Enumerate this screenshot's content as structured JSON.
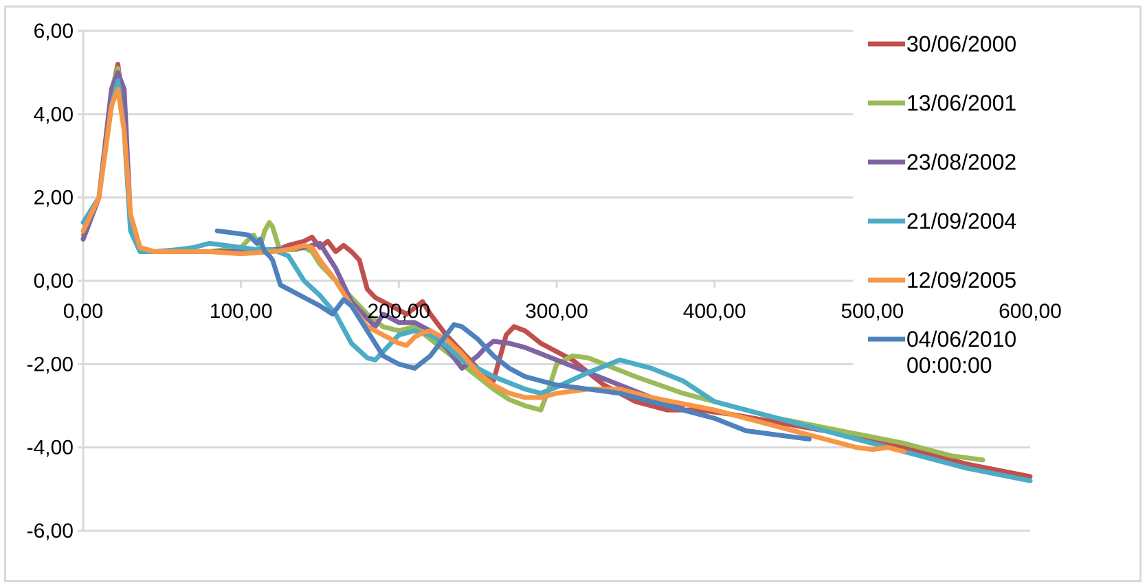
{
  "chart_data": {
    "type": "line",
    "title": "",
    "xlabel": "",
    "ylabel": "",
    "xlim": [
      0,
      600
    ],
    "ylim": [
      -6,
      6
    ],
    "x_ticks": [
      {
        "value": 0,
        "label": "0,00"
      },
      {
        "value": 100,
        "label": "100,00"
      },
      {
        "value": 200,
        "label": "200,00"
      },
      {
        "value": 300,
        "label": "300,00"
      },
      {
        "value": 400,
        "label": "400,00"
      },
      {
        "value": 500,
        "label": "500,00"
      },
      {
        "value": 600,
        "label": "600,00"
      }
    ],
    "y_ticks": [
      {
        "value": 6,
        "label": "6,00"
      },
      {
        "value": 4,
        "label": "4,00"
      },
      {
        "value": 2,
        "label": "2,00"
      },
      {
        "value": 0,
        "label": "0,00"
      },
      {
        "value": -2,
        "label": "-2,00"
      },
      {
        "value": -4,
        "label": "-4,00"
      },
      {
        "value": -6,
        "label": "-6,00"
      }
    ],
    "grid": "horizontal",
    "legend_position": "right",
    "series": [
      {
        "name": "30/06/2000",
        "color": "#c0504d",
        "x": [
          0,
          10,
          18,
          22,
          26,
          30,
          36,
          45,
          60,
          80,
          100,
          120,
          130,
          140,
          145,
          150,
          155,
          160,
          165,
          170,
          175,
          180,
          185,
          195,
          205,
          215,
          220,
          230,
          240,
          250,
          260,
          268,
          273,
          280,
          290,
          300,
          310,
          320,
          330,
          350,
          370,
          390,
          410,
          440,
          470,
          500,
          530,
          560,
          600
        ],
        "y": [
          1.0,
          2.0,
          4.5,
          5.2,
          4.0,
          1.5,
          0.8,
          0.7,
          0.7,
          0.7,
          0.7,
          0.7,
          0.85,
          0.95,
          1.05,
          0.8,
          0.95,
          0.7,
          0.85,
          0.7,
          0.5,
          -0.2,
          -0.4,
          -0.6,
          -0.8,
          -0.5,
          -0.8,
          -1.3,
          -1.7,
          -2.1,
          -2.4,
          -1.3,
          -1.1,
          -1.2,
          -1.5,
          -1.7,
          -1.9,
          -2.2,
          -2.5,
          -2.9,
          -3.1,
          -3.1,
          -3.2,
          -3.4,
          -3.6,
          -3.8,
          -4.1,
          -4.4,
          -4.7
        ]
      },
      {
        "name": "13/06/2001",
        "color": "#9bbb59",
        "x": [
          0,
          10,
          18,
          22,
          26,
          30,
          36,
          45,
          60,
          80,
          100,
          105,
          108,
          112,
          115,
          118,
          120,
          124,
          128,
          135,
          140,
          145,
          150,
          155,
          160,
          170,
          180,
          190,
          200,
          210,
          220,
          230,
          240,
          250,
          260,
          270,
          280,
          290,
          295,
          300,
          310,
          320,
          330,
          350,
          380,
          410,
          440,
          480,
          520,
          550,
          570
        ],
        "y": [
          1.1,
          2.0,
          4.6,
          5.1,
          4.0,
          1.5,
          0.75,
          0.7,
          0.7,
          0.7,
          0.8,
          1.0,
          1.1,
          0.8,
          1.2,
          1.4,
          1.3,
          0.8,
          0.75,
          0.75,
          0.8,
          0.7,
          0.4,
          0.2,
          0.0,
          -0.4,
          -0.8,
          -1.1,
          -1.2,
          -1.1,
          -1.4,
          -1.7,
          -2.0,
          -2.3,
          -2.6,
          -2.85,
          -3.0,
          -3.1,
          -2.6,
          -2.0,
          -1.8,
          -1.85,
          -2.0,
          -2.3,
          -2.7,
          -3.0,
          -3.3,
          -3.6,
          -3.9,
          -4.2,
          -4.3
        ]
      },
      {
        "name": "23/08/2002",
        "color": "#8064a2",
        "x": [
          0,
          10,
          18,
          22,
          26,
          30,
          36,
          45,
          60,
          80,
          100,
          120,
          140,
          150,
          155,
          160,
          170,
          180,
          185,
          190,
          195,
          200,
          210,
          220,
          230,
          240,
          250,
          255,
          260,
          270,
          280,
          300,
          320,
          340,
          360,
          380
        ],
        "y": [
          1.0,
          2.0,
          4.6,
          5.0,
          4.6,
          1.5,
          0.8,
          0.7,
          0.7,
          0.7,
          0.7,
          0.75,
          0.8,
          0.9,
          0.6,
          0.3,
          -0.5,
          -0.9,
          -1.1,
          -0.8,
          -0.9,
          -1.0,
          -1.0,
          -1.2,
          -1.6,
          -2.1,
          -1.8,
          -1.6,
          -1.45,
          -1.5,
          -1.6,
          -1.9,
          -2.2,
          -2.5,
          -2.8,
          -3.0
        ]
      },
      {
        "name": "21/09/2004",
        "color": "#4bacc6",
        "x": [
          0,
          10,
          18,
          22,
          26,
          30,
          36,
          45,
          60,
          70,
          80,
          90,
          100,
          110,
          120,
          130,
          140,
          150,
          160,
          170,
          180,
          185,
          190,
          200,
          210,
          220,
          230,
          240,
          260,
          280,
          290,
          300,
          320,
          340,
          360,
          380,
          400,
          420,
          440,
          470,
          500,
          530,
          560,
          600
        ],
        "y": [
          1.4,
          2.0,
          4.2,
          4.8,
          3.6,
          1.2,
          0.7,
          0.7,
          0.75,
          0.8,
          0.9,
          0.85,
          0.8,
          0.75,
          0.75,
          0.6,
          0.0,
          -0.35,
          -0.8,
          -1.5,
          -1.85,
          -1.9,
          -1.7,
          -1.3,
          -1.2,
          -1.3,
          -1.55,
          -1.9,
          -2.3,
          -2.6,
          -2.7,
          -2.55,
          -2.2,
          -1.9,
          -2.1,
          -2.4,
          -2.9,
          -3.1,
          -3.3,
          -3.6,
          -3.9,
          -4.2,
          -4.5,
          -4.8
        ]
      },
      {
        "name": "12/09/2005",
        "color": "#f79646",
        "x": [
          0,
          10,
          18,
          22,
          26,
          30,
          36,
          45,
          60,
          80,
          100,
          120,
          130,
          140,
          145,
          150,
          160,
          170,
          180,
          190,
          200,
          205,
          210,
          215,
          220,
          230,
          240,
          250,
          260,
          270,
          280,
          290,
          300,
          310,
          320,
          340,
          360,
          380,
          400,
          430,
          460,
          480,
          490,
          500,
          510,
          520
        ],
        "y": [
          1.2,
          2.0,
          4.2,
          4.6,
          3.6,
          1.6,
          0.8,
          0.7,
          0.7,
          0.7,
          0.65,
          0.7,
          0.75,
          0.85,
          0.8,
          0.5,
          0.0,
          -0.6,
          -1.1,
          -1.3,
          -1.5,
          -1.55,
          -1.35,
          -1.25,
          -1.2,
          -1.4,
          -1.75,
          -2.2,
          -2.5,
          -2.7,
          -2.8,
          -2.8,
          -2.7,
          -2.65,
          -2.6,
          -2.6,
          -2.8,
          -2.95,
          -3.1,
          -3.4,
          -3.7,
          -3.9,
          -4.0,
          -4.05,
          -4.0,
          -4.1
        ]
      },
      {
        "name": "04/06/2010 00:00:00",
        "color": "#4f81bd",
        "x": [
          85,
          95,
          105,
          110,
          112,
          115,
          118,
          120,
          125,
          130,
          140,
          150,
          158,
          165,
          170,
          180,
          190,
          200,
          210,
          220,
          230,
          235,
          240,
          250,
          260,
          270,
          280,
          300,
          320,
          340,
          360,
          380,
          400,
          420,
          440,
          460
        ],
        "y": [
          1.2,
          1.15,
          1.1,
          0.9,
          1.0,
          0.7,
          0.6,
          0.5,
          -0.1,
          -0.2,
          -0.4,
          -0.6,
          -0.8,
          -0.45,
          -0.6,
          -1.2,
          -1.8,
          -2.0,
          -2.1,
          -1.8,
          -1.3,
          -1.05,
          -1.1,
          -1.4,
          -1.8,
          -2.1,
          -2.3,
          -2.5,
          -2.6,
          -2.7,
          -2.9,
          -3.1,
          -3.3,
          -3.6,
          -3.7,
          -3.8
        ]
      }
    ]
  }
}
